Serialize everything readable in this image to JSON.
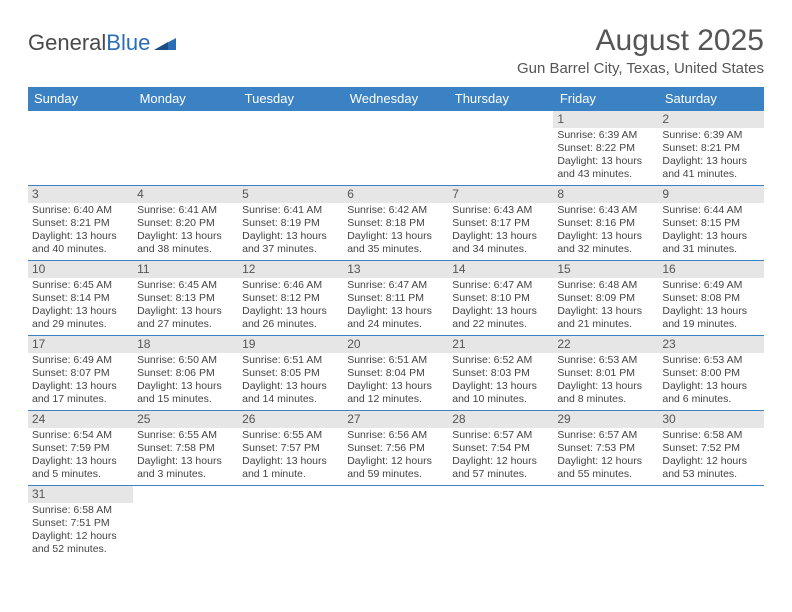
{
  "logo": {
    "part1": "General",
    "part2": "Blue"
  },
  "title": "August 2025",
  "location": "Gun Barrel City, Texas, United States",
  "header_bg": "#3b82c4",
  "header_fg": "#ffffff",
  "daynum_bg": "#e6e6e6",
  "border_color": "#3b82c4",
  "weekdays": [
    "Sunday",
    "Monday",
    "Tuesday",
    "Wednesday",
    "Thursday",
    "Friday",
    "Saturday"
  ],
  "weeks": [
    [
      null,
      null,
      null,
      null,
      null,
      {
        "n": "1",
        "sunrise": "Sunrise: 6:39 AM",
        "sunset": "Sunset: 8:22 PM",
        "day1": "Daylight: 13 hours",
        "day2": "and 43 minutes."
      },
      {
        "n": "2",
        "sunrise": "Sunrise: 6:39 AM",
        "sunset": "Sunset: 8:21 PM",
        "day1": "Daylight: 13 hours",
        "day2": "and 41 minutes."
      }
    ],
    [
      {
        "n": "3",
        "sunrise": "Sunrise: 6:40 AM",
        "sunset": "Sunset: 8:21 PM",
        "day1": "Daylight: 13 hours",
        "day2": "and 40 minutes."
      },
      {
        "n": "4",
        "sunrise": "Sunrise: 6:41 AM",
        "sunset": "Sunset: 8:20 PM",
        "day1": "Daylight: 13 hours",
        "day2": "and 38 minutes."
      },
      {
        "n": "5",
        "sunrise": "Sunrise: 6:41 AM",
        "sunset": "Sunset: 8:19 PM",
        "day1": "Daylight: 13 hours",
        "day2": "and 37 minutes."
      },
      {
        "n": "6",
        "sunrise": "Sunrise: 6:42 AM",
        "sunset": "Sunset: 8:18 PM",
        "day1": "Daylight: 13 hours",
        "day2": "and 35 minutes."
      },
      {
        "n": "7",
        "sunrise": "Sunrise: 6:43 AM",
        "sunset": "Sunset: 8:17 PM",
        "day1": "Daylight: 13 hours",
        "day2": "and 34 minutes."
      },
      {
        "n": "8",
        "sunrise": "Sunrise: 6:43 AM",
        "sunset": "Sunset: 8:16 PM",
        "day1": "Daylight: 13 hours",
        "day2": "and 32 minutes."
      },
      {
        "n": "9",
        "sunrise": "Sunrise: 6:44 AM",
        "sunset": "Sunset: 8:15 PM",
        "day1": "Daylight: 13 hours",
        "day2": "and 31 minutes."
      }
    ],
    [
      {
        "n": "10",
        "sunrise": "Sunrise: 6:45 AM",
        "sunset": "Sunset: 8:14 PM",
        "day1": "Daylight: 13 hours",
        "day2": "and 29 minutes."
      },
      {
        "n": "11",
        "sunrise": "Sunrise: 6:45 AM",
        "sunset": "Sunset: 8:13 PM",
        "day1": "Daylight: 13 hours",
        "day2": "and 27 minutes."
      },
      {
        "n": "12",
        "sunrise": "Sunrise: 6:46 AM",
        "sunset": "Sunset: 8:12 PM",
        "day1": "Daylight: 13 hours",
        "day2": "and 26 minutes."
      },
      {
        "n": "13",
        "sunrise": "Sunrise: 6:47 AM",
        "sunset": "Sunset: 8:11 PM",
        "day1": "Daylight: 13 hours",
        "day2": "and 24 minutes."
      },
      {
        "n": "14",
        "sunrise": "Sunrise: 6:47 AM",
        "sunset": "Sunset: 8:10 PM",
        "day1": "Daylight: 13 hours",
        "day2": "and 22 minutes."
      },
      {
        "n": "15",
        "sunrise": "Sunrise: 6:48 AM",
        "sunset": "Sunset: 8:09 PM",
        "day1": "Daylight: 13 hours",
        "day2": "and 21 minutes."
      },
      {
        "n": "16",
        "sunrise": "Sunrise: 6:49 AM",
        "sunset": "Sunset: 8:08 PM",
        "day1": "Daylight: 13 hours",
        "day2": "and 19 minutes."
      }
    ],
    [
      {
        "n": "17",
        "sunrise": "Sunrise: 6:49 AM",
        "sunset": "Sunset: 8:07 PM",
        "day1": "Daylight: 13 hours",
        "day2": "and 17 minutes."
      },
      {
        "n": "18",
        "sunrise": "Sunrise: 6:50 AM",
        "sunset": "Sunset: 8:06 PM",
        "day1": "Daylight: 13 hours",
        "day2": "and 15 minutes."
      },
      {
        "n": "19",
        "sunrise": "Sunrise: 6:51 AM",
        "sunset": "Sunset: 8:05 PM",
        "day1": "Daylight: 13 hours",
        "day2": "and 14 minutes."
      },
      {
        "n": "20",
        "sunrise": "Sunrise: 6:51 AM",
        "sunset": "Sunset: 8:04 PM",
        "day1": "Daylight: 13 hours",
        "day2": "and 12 minutes."
      },
      {
        "n": "21",
        "sunrise": "Sunrise: 6:52 AM",
        "sunset": "Sunset: 8:03 PM",
        "day1": "Daylight: 13 hours",
        "day2": "and 10 minutes."
      },
      {
        "n": "22",
        "sunrise": "Sunrise: 6:53 AM",
        "sunset": "Sunset: 8:01 PM",
        "day1": "Daylight: 13 hours",
        "day2": "and 8 minutes."
      },
      {
        "n": "23",
        "sunrise": "Sunrise: 6:53 AM",
        "sunset": "Sunset: 8:00 PM",
        "day1": "Daylight: 13 hours",
        "day2": "and 6 minutes."
      }
    ],
    [
      {
        "n": "24",
        "sunrise": "Sunrise: 6:54 AM",
        "sunset": "Sunset: 7:59 PM",
        "day1": "Daylight: 13 hours",
        "day2": "and 5 minutes."
      },
      {
        "n": "25",
        "sunrise": "Sunrise: 6:55 AM",
        "sunset": "Sunset: 7:58 PM",
        "day1": "Daylight: 13 hours",
        "day2": "and 3 minutes."
      },
      {
        "n": "26",
        "sunrise": "Sunrise: 6:55 AM",
        "sunset": "Sunset: 7:57 PM",
        "day1": "Daylight: 13 hours",
        "day2": "and 1 minute."
      },
      {
        "n": "27",
        "sunrise": "Sunrise: 6:56 AM",
        "sunset": "Sunset: 7:56 PM",
        "day1": "Daylight: 12 hours",
        "day2": "and 59 minutes."
      },
      {
        "n": "28",
        "sunrise": "Sunrise: 6:57 AM",
        "sunset": "Sunset: 7:54 PM",
        "day1": "Daylight: 12 hours",
        "day2": "and 57 minutes."
      },
      {
        "n": "29",
        "sunrise": "Sunrise: 6:57 AM",
        "sunset": "Sunset: 7:53 PM",
        "day1": "Daylight: 12 hours",
        "day2": "and 55 minutes."
      },
      {
        "n": "30",
        "sunrise": "Sunrise: 6:58 AM",
        "sunset": "Sunset: 7:52 PM",
        "day1": "Daylight: 12 hours",
        "day2": "and 53 minutes."
      }
    ],
    [
      {
        "n": "31",
        "sunrise": "Sunrise: 6:58 AM",
        "sunset": "Sunset: 7:51 PM",
        "day1": "Daylight: 12 hours",
        "day2": "and 52 minutes."
      },
      null,
      null,
      null,
      null,
      null,
      null
    ]
  ]
}
